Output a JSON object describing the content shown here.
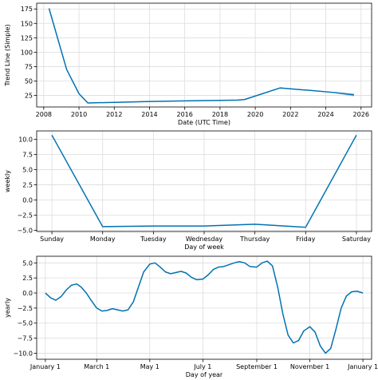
{
  "chart_data": [
    {
      "type": "line",
      "xlabel": "Date (UTC Time)",
      "ylabel": "Trend Line (Simple)",
      "xlim": [
        2007.6,
        2026.6
      ],
      "ylim": [
        5,
        185
      ],
      "x_ticks": [
        2008,
        2010,
        2012,
        2014,
        2016,
        2018,
        2020,
        2022,
        2024,
        2026
      ],
      "x_tick_labels": [
        "2008",
        "2010",
        "2012",
        "2014",
        "2016",
        "2018",
        "2020",
        "2022",
        "2024",
        "2026"
      ],
      "y_ticks": [
        25,
        50,
        75,
        100,
        125,
        150,
        175
      ],
      "y_tick_labels": [
        "25",
        "50",
        "75",
        "100",
        "125",
        "150",
        "175"
      ],
      "grid": true,
      "series": [
        {
          "x": [
            2008.3,
            2009.3,
            2010.0,
            2010.5,
            2012.0,
            2014.0,
            2016.0,
            2018.0,
            2019.0,
            2019.4,
            2021.4,
            2023.0,
            2024.5,
            2025.6
          ],
          "values": [
            176,
            70,
            28,
            12,
            13,
            14.5,
            15.5,
            16.5,
            17,
            18,
            38,
            34,
            30,
            26
          ]
        }
      ],
      "uncertainty_band": {
        "x": [
          2024.5,
          2025.6
        ],
        "lower": [
          29,
          23
        ],
        "upper": [
          31,
          29
        ]
      }
    },
    {
      "type": "line",
      "xlabel": "Day of week",
      "ylabel": "weekly",
      "xlim": [
        -0.3,
        6.3
      ],
      "ylim": [
        -5.2,
        11.4
      ],
      "categories": [
        "Sunday",
        "Monday",
        "Tuesday",
        "Wednesday",
        "Thursday",
        "Friday",
        "Saturday"
      ],
      "y_ticks": [
        -5.0,
        -2.5,
        0.0,
        2.5,
        5.0,
        7.5,
        10.0
      ],
      "y_tick_labels": [
        "−5.0",
        "−2.5",
        "0.0",
        "2.5",
        "5.0",
        "7.5",
        "10.0"
      ],
      "grid": true,
      "series": [
        {
          "values": [
            10.7,
            -4.4,
            -4.3,
            -4.3,
            -4.0,
            -4.5,
            10.7
          ]
        }
      ]
    },
    {
      "type": "line",
      "xlabel": "Day of year",
      "ylabel": "yearly",
      "xlim": [
        -10,
        375
      ],
      "ylim": [
        -11,
        6.1
      ],
      "x_ticks": [
        0,
        59,
        120,
        181,
        243,
        304,
        365
      ],
      "x_tick_labels": [
        "January 1",
        "March 1",
        "May 1",
        "July 1",
        "September 1",
        "November 1",
        "January 1"
      ],
      "y_ticks": [
        -10.0,
        -7.5,
        -5.0,
        -2.5,
        0.0,
        2.5,
        5.0
      ],
      "y_tick_labels": [
        "−10.0",
        "−7.5",
        "−5.0",
        "−2.5",
        "0.0",
        "2.5",
        "5.0"
      ],
      "grid": true,
      "series": [
        {
          "x": [
            0,
            6,
            12,
            18,
            24,
            30,
            36,
            41,
            47,
            53,
            59,
            65,
            71,
            77,
            83,
            89,
            95,
            101,
            107,
            113,
            120,
            126,
            132,
            138,
            144,
            150,
            156,
            162,
            168,
            174,
            181,
            187,
            193,
            199,
            205,
            211,
            217,
            223,
            229,
            235,
            243,
            249,
            255,
            261,
            267,
            273,
            279,
            285,
            291,
            297,
            304,
            310,
            316,
            322,
            328,
            334,
            340,
            346,
            352,
            358,
            365
          ],
          "values": [
            0.0,
            -0.8,
            -1.2,
            -0.6,
            0.5,
            1.3,
            1.5,
            1.0,
            0.0,
            -1.3,
            -2.5,
            -3.0,
            -2.9,
            -2.6,
            -2.8,
            -3.0,
            -2.8,
            -1.5,
            1.0,
            3.5,
            4.8,
            5.0,
            4.3,
            3.5,
            3.2,
            3.4,
            3.6,
            3.3,
            2.6,
            2.2,
            2.3,
            3.0,
            3.9,
            4.3,
            4.4,
            4.7,
            5.0,
            5.2,
            5.0,
            4.4,
            4.3,
            5.0,
            5.3,
            4.5,
            1.0,
            -3.5,
            -7.0,
            -8.3,
            -7.9,
            -6.3,
            -5.6,
            -6.5,
            -8.8,
            -10.0,
            -9.2,
            -6.0,
            -2.5,
            -0.5,
            0.2,
            0.3,
            0.0
          ]
        }
      ]
    }
  ],
  "colors": {
    "series": "#0072B2",
    "grid": "#dcdcdc",
    "axis": "#000000"
  }
}
